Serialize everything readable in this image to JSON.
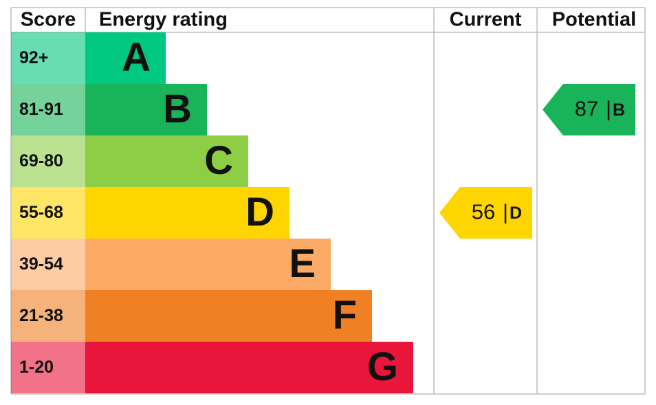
{
  "header": {
    "score": "Score",
    "energy_rating": "Energy rating",
    "current": "Current",
    "potential": "Potential"
  },
  "bands": [
    {
      "score": "92+",
      "letter": "A",
      "color": "#00c781"
    },
    {
      "score": "81-91",
      "letter": "B",
      "color": "#19b459"
    },
    {
      "score": "69-80",
      "letter": "C",
      "color": "#8dce46"
    },
    {
      "score": "55-68",
      "letter": "D",
      "color": "#ffd500"
    },
    {
      "score": "39-54",
      "letter": "E",
      "color": "#fcaa65"
    },
    {
      "score": "21-38",
      "letter": "F",
      "color": "#ef8023"
    },
    {
      "score": "1-20",
      "letter": "G",
      "color": "#e9153b"
    }
  ],
  "current": {
    "value": 56,
    "separator": "|",
    "letter": "D"
  },
  "potential": {
    "value": 87,
    "separator": "|",
    "letter": "B"
  }
}
